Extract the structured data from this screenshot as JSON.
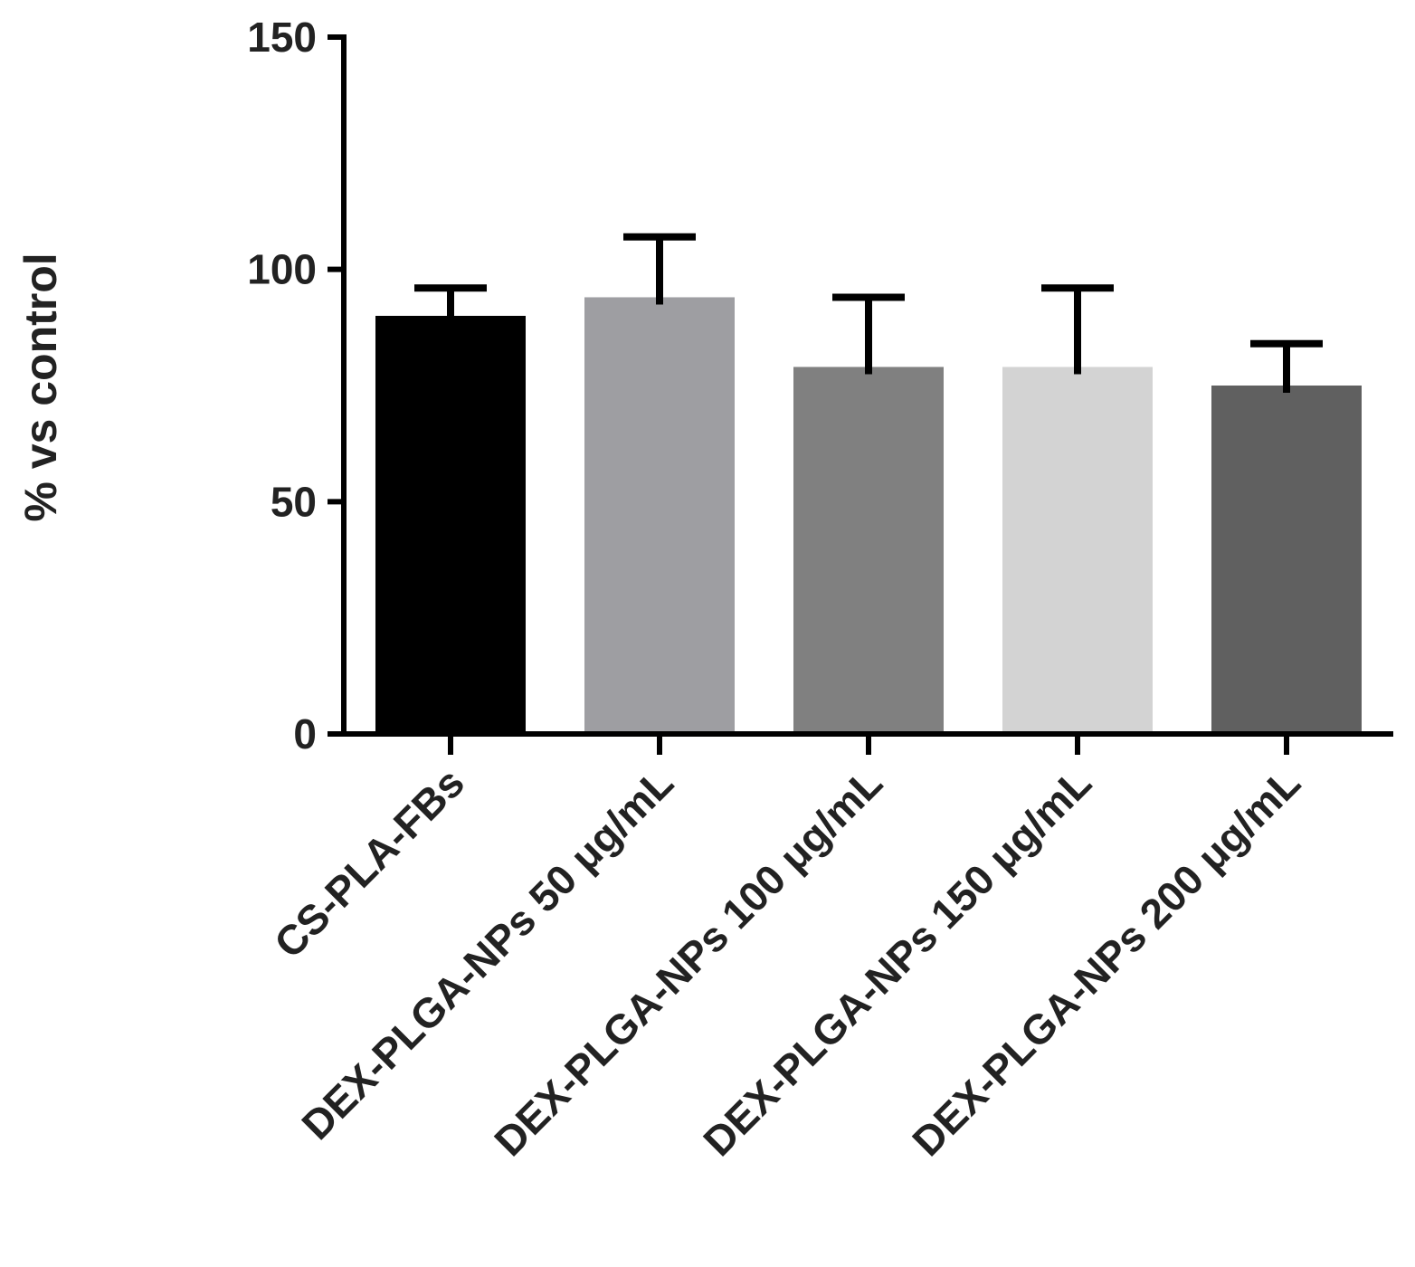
{
  "chart_data": {
    "type": "bar",
    "title": "",
    "xlabel": "",
    "ylabel": "% vs control",
    "ylim": [
      0,
      150
    ],
    "yticks": [
      0,
      50,
      100,
      150
    ],
    "categories": [
      "CS-PLA-FBs",
      "DEX-PLGA-NPs 50 μg/mL",
      "DEX-PLGA-NPs 100 μg/mL",
      "DEX-PLGA-NPs 150 μg/mL",
      "DEX-PLGA-NPs 200 μg/mL"
    ],
    "values": [
      90,
      94,
      79,
      79,
      75
    ],
    "errors": [
      6,
      13,
      15,
      17,
      9
    ],
    "colors": [
      "#000000",
      "#9e9ea2",
      "#808080",
      "#d3d3d3",
      "#606060"
    ],
    "grid": false,
    "legend": "none"
  }
}
